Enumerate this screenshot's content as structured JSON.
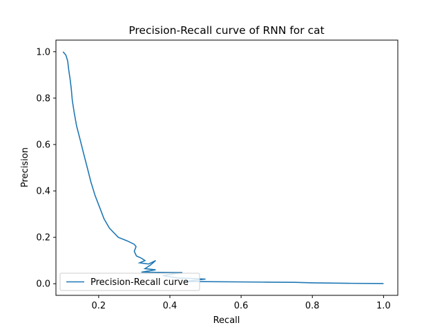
{
  "chart_data": {
    "type": "line",
    "title": "Precision-Recall curve of RNN for cat",
    "xlabel": "Recall",
    "ylabel": "Precision",
    "xlim": [
      0.08,
      1.04
    ],
    "ylim": [
      -0.05,
      1.05
    ],
    "xticks": [
      0.2,
      0.4,
      0.6,
      0.8,
      1.0
    ],
    "xtick_labels": [
      "0.2",
      "0.4",
      "0.6",
      "0.8",
      "1.0"
    ],
    "yticks": [
      0.0,
      0.2,
      0.4,
      0.6,
      0.8,
      1.0
    ],
    "ytick_labels": [
      "0.0",
      "0.2",
      "0.4",
      "0.6",
      "0.8",
      "1.0"
    ],
    "grid": false,
    "legend": {
      "placement": "lower-left"
    },
    "series_color": "#1f77b4",
    "series": [
      {
        "name": "Precision-Recall curve",
        "x": [
          0.1,
          0.108,
          0.113,
          0.116,
          0.12,
          0.123,
          0.126,
          0.131,
          0.138,
          0.148,
          0.158,
          0.168,
          0.178,
          0.19,
          0.205,
          0.215,
          0.23,
          0.255,
          0.28,
          0.3,
          0.305,
          0.3,
          0.306,
          0.32,
          0.33,
          0.315,
          0.34,
          0.36,
          0.345,
          0.33,
          0.36,
          0.32,
          0.435,
          0.38,
          0.42,
          0.5,
          0.44,
          0.67,
          0.75,
          0.8,
          0.9,
          1.0
        ],
        "y": [
          1.0,
          0.985,
          0.96,
          0.92,
          0.88,
          0.84,
          0.79,
          0.74,
          0.68,
          0.62,
          0.56,
          0.5,
          0.44,
          0.38,
          0.32,
          0.28,
          0.24,
          0.2,
          0.185,
          0.17,
          0.16,
          0.14,
          0.12,
          0.11,
          0.1,
          0.09,
          0.085,
          0.1,
          0.08,
          0.065,
          0.06,
          0.05,
          0.048,
          0.035,
          0.025,
          0.02,
          0.01,
          0.007,
          0.006,
          0.004,
          0.002,
          0.001
        ]
      }
    ]
  }
}
